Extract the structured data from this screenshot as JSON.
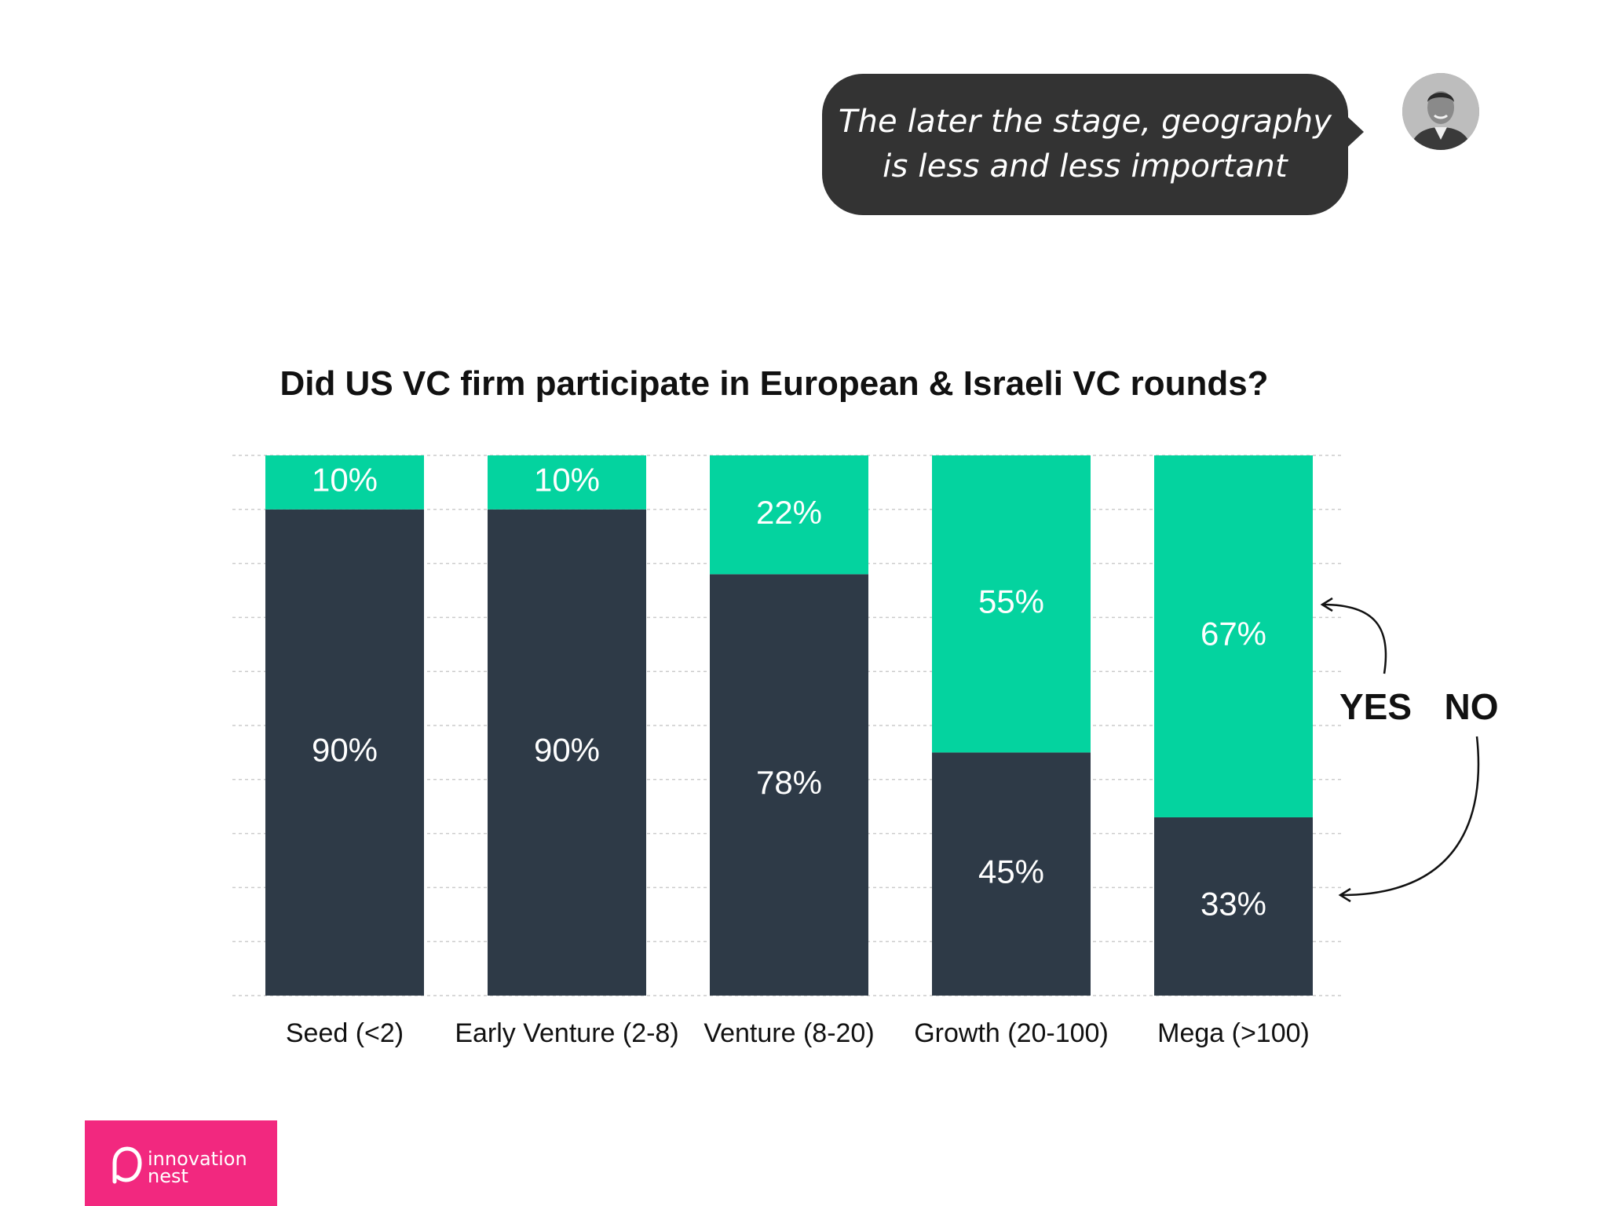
{
  "quote": {
    "line1": "The later the stage, geography",
    "line2": "is less and less important"
  },
  "avatar_icon": "person-photo-icon",
  "legend": {
    "yes": "YES",
    "no": "NO"
  },
  "brand": {
    "line1": "innovation",
    "line2": "nest"
  },
  "colors": {
    "yes": "#04d39f",
    "no": "#2e3a47",
    "grid": "#cccccc",
    "text": "#111111",
    "brand": "#f2287f"
  },
  "chart_data": {
    "type": "bar",
    "stacked": true,
    "title": "Did US VC firm participate in European & Israeli VC rounds?",
    "categories": [
      "Seed (<2)",
      "Early Venture (2-8)",
      "Venture (8-20)",
      "Growth (20-100)",
      "Mega (>100)"
    ],
    "series": [
      {
        "name": "NO",
        "values": [
          90,
          90,
          78,
          45,
          33
        ],
        "labels": [
          "90%",
          "90%",
          "78%",
          "45%",
          "33%"
        ]
      },
      {
        "name": "YES",
        "values": [
          10,
          10,
          22,
          55,
          67
        ],
        "labels": [
          "10%",
          "10%",
          "22%",
          "55%",
          "67%"
        ]
      }
    ],
    "ylim": [
      0,
      100
    ],
    "grid": true,
    "xlabel": "",
    "ylabel": ""
  }
}
